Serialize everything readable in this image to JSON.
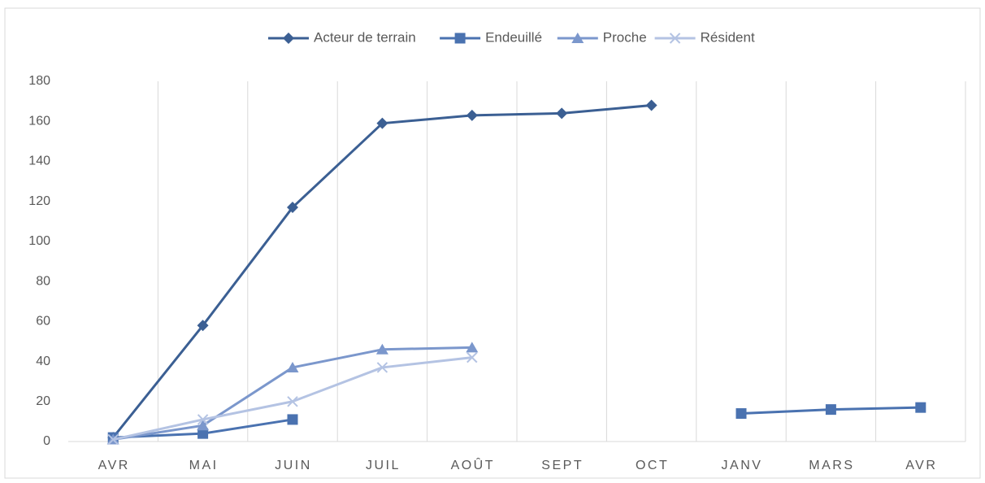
{
  "chart_data": {
    "type": "line",
    "categories": [
      "AVR",
      "MAI",
      "JUIN",
      "JUIL",
      "AOÛT",
      "SEPT",
      "OCT",
      "JANV",
      "MARS",
      "AVR"
    ],
    "series": [
      {
        "name": "Acteur de terrain",
        "color": "#3b5f93",
        "marker": "diamond",
        "values": [
          2,
          58,
          117,
          159,
          163,
          164,
          168,
          null,
          null,
          null
        ]
      },
      {
        "name": "Endeuillé",
        "color": "#4a72b0",
        "marker": "square",
        "values": [
          2,
          4,
          11,
          null,
          null,
          null,
          null,
          14,
          16,
          17
        ]
      },
      {
        "name": "Proche",
        "color": "#7b97cc",
        "marker": "triangle",
        "values": [
          1,
          8,
          37,
          46,
          47,
          null,
          null,
          null,
          null,
          null
        ]
      },
      {
        "name": "Résident",
        "color": "#b4c3e3",
        "marker": "x",
        "values": [
          1,
          11,
          20,
          37,
          42,
          null,
          null,
          null,
          null,
          null
        ]
      }
    ],
    "ylim": [
      0,
      180
    ],
    "yticks": [
      0,
      20,
      40,
      60,
      80,
      100,
      120,
      140,
      160,
      180
    ],
    "grid": true,
    "legend": "top"
  }
}
